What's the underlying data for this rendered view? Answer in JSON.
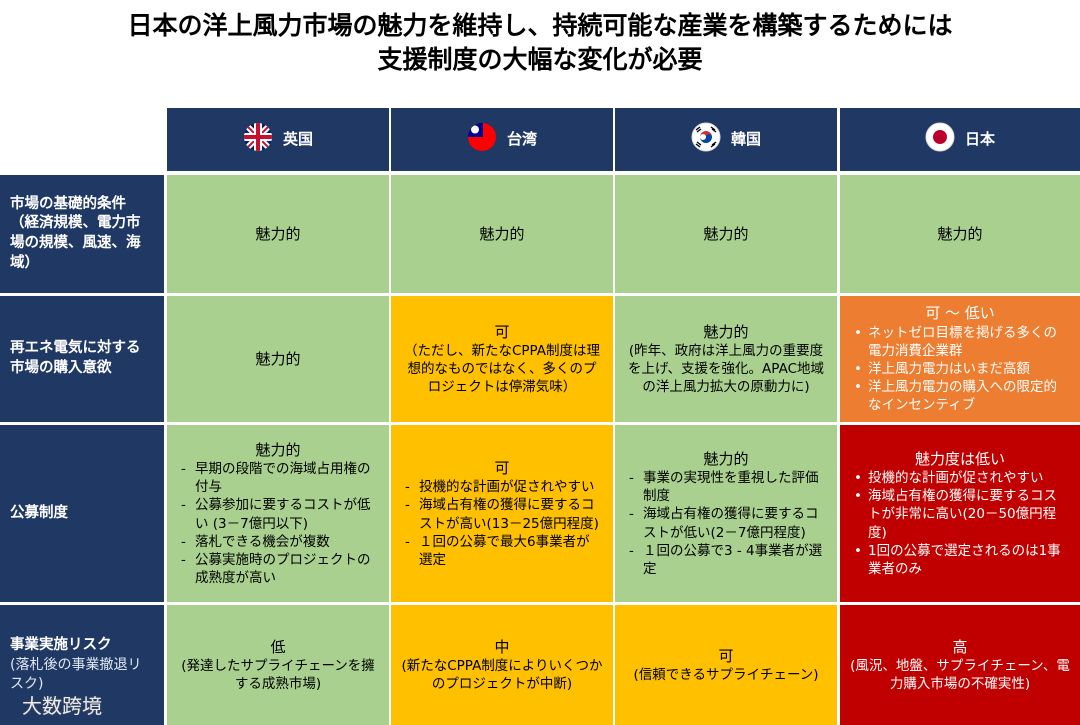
{
  "title": [
    "日本の洋上風力市場の魅力を維持し、持続可能な産業を構築するためには",
    "支援制度の大幅な変化が必要"
  ],
  "columns": [
    "英国",
    "台湾",
    "韓国",
    "日本"
  ],
  "rows": [
    {
      "header": "市場の基礎的条件（経済規模、電力市場の規模、風速、海域）",
      "cells": [
        {
          "rating": "魅力的",
          "color": "#a9d08e"
        },
        {
          "rating": "魅力的",
          "color": "#a9d08e"
        },
        {
          "rating": "魅力的",
          "color": "#a9d08e"
        },
        {
          "rating": "魅力的",
          "color": "#a9d08e"
        }
      ]
    },
    {
      "header": "再エネ電気に対する市場の購入意欲",
      "cells": [
        {
          "rating": "魅力的",
          "color": "#a9d08e"
        },
        {
          "rating": "可",
          "text": "（ただし、新たなCPPA制度は理想的なものではなく、多くのプロジェクトは停滞気味）",
          "color": "#ffc000"
        },
        {
          "rating": "魅力的",
          "text": "(昨年、政府は洋上風力の重要度を上げ、支援を強化。APAC地域の洋上風力拡大の原動力に)",
          "color": "#a9d08e"
        },
        {
          "rating": "可 ～ 低い",
          "bullets": [
            "ネットゼロ目標を掲げる多くの電力消費企業群",
            "洋上風力電力はいまだ高額",
            "洋上風力電力の購入への限定的なインセンティブ"
          ],
          "color": "#ed7d31"
        }
      ]
    },
    {
      "header": "公募制度",
      "cells": [
        {
          "rating": "魅力的",
          "bullets": [
            "早期の段階での海域占用権の付与",
            "公募参加に要するコストが低い (3－7億円以下)",
            "落札できる機会が複数",
            "公募実施時のプロジェクトの成熟度が高い"
          ],
          "color": "#a9d08e"
        },
        {
          "rating": "可",
          "bullets": [
            "投機的な計画が促されやすい",
            "海域占有権の獲得に要するコストが高い(13－25億円程度)",
            "１回の公募で最大6事業者が選定"
          ],
          "color": "#ffc000"
        },
        {
          "rating": "魅力的",
          "bullets": [
            "事業の実現性を重視した評価制度",
            "海域占有権の獲得に要するコストが低い(2－7億円程度)",
            "１回の公募で3 - 4事業者が選定"
          ],
          "color": "#a9d08e"
        },
        {
          "rating": "魅力度は低い",
          "bullets": [
            "投機的な計画が促されやすい",
            "海域占有権の獲得に要するコストが非常に高い(20－50億円程度)",
            "1回の公募で選定されるのは1事業者のみ"
          ],
          "color": "#c00000"
        }
      ]
    },
    {
      "header": "事業実施リスク",
      "subheader": "(落札後の事業撤退リスク)",
      "cells": [
        {
          "rating": "低",
          "text": "(発達したサプライチェーンを擁する成熟市場)",
          "color": "#a9d08e"
        },
        {
          "rating": "中",
          "text": "(新たなCPPA制度によりいくつかのプロジェクトが中断)",
          "color": "#ffc000"
        },
        {
          "rating": "可",
          "text": "(信頼できるサプライチェーン)",
          "color": "#ffc000"
        },
        {
          "rating": "高",
          "text": "(風況、地盤、サプライチェーン、電力購入市場の不確実性)",
          "color": "#c00000"
        }
      ]
    }
  ],
  "watermark": "大数跨境"
}
